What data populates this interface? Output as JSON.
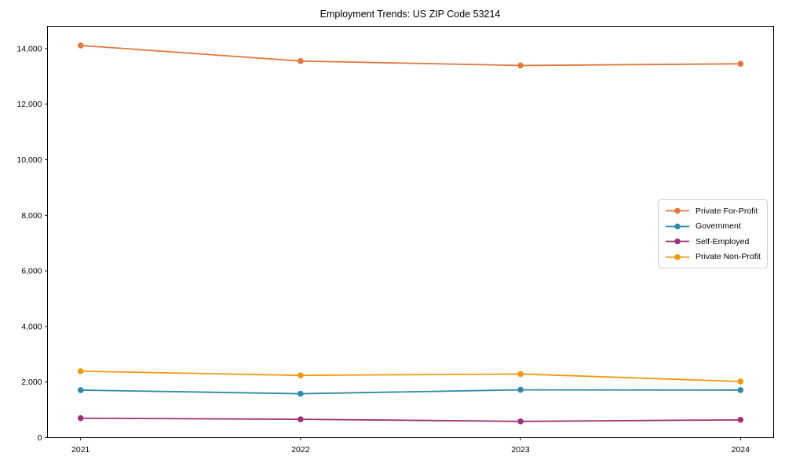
{
  "chart_data": {
    "type": "line",
    "title": "Employment Trends: US ZIP Code 53214",
    "xlabel": "",
    "ylabel": "",
    "x_categories": [
      "2021",
      "2022",
      "2023",
      "2024"
    ],
    "series": [
      {
        "name": "Private For-Profit",
        "color": "#E0793D",
        "values": [
          14110,
          13550,
          13390,
          13450
        ]
      },
      {
        "name": "Government",
        "color": "#2E8BA8",
        "values": [
          1710,
          1580,
          1720,
          1710
        ]
      },
      {
        "name": "Self-Employed",
        "color": "#A03076",
        "values": [
          700,
          660,
          585,
          640
        ]
      },
      {
        "name": "Private Non-Profit",
        "color": "#F09A10",
        "values": [
          2390,
          2240,
          2290,
          2020
        ]
      }
    ],
    "ylim": [
      0,
      14800
    ],
    "yticks": [
      0,
      2000,
      4000,
      6000,
      8000,
      10000,
      12000,
      14000
    ],
    "ytick_labels": [
      "0",
      "2,000",
      "4,000",
      "6,000",
      "8,000",
      "10,000",
      "12,000",
      "14,000"
    ],
    "grid": false,
    "legend_position": "center right",
    "marker": "circle",
    "axis_color": "#000000",
    "background_color": "#ffffff"
  }
}
